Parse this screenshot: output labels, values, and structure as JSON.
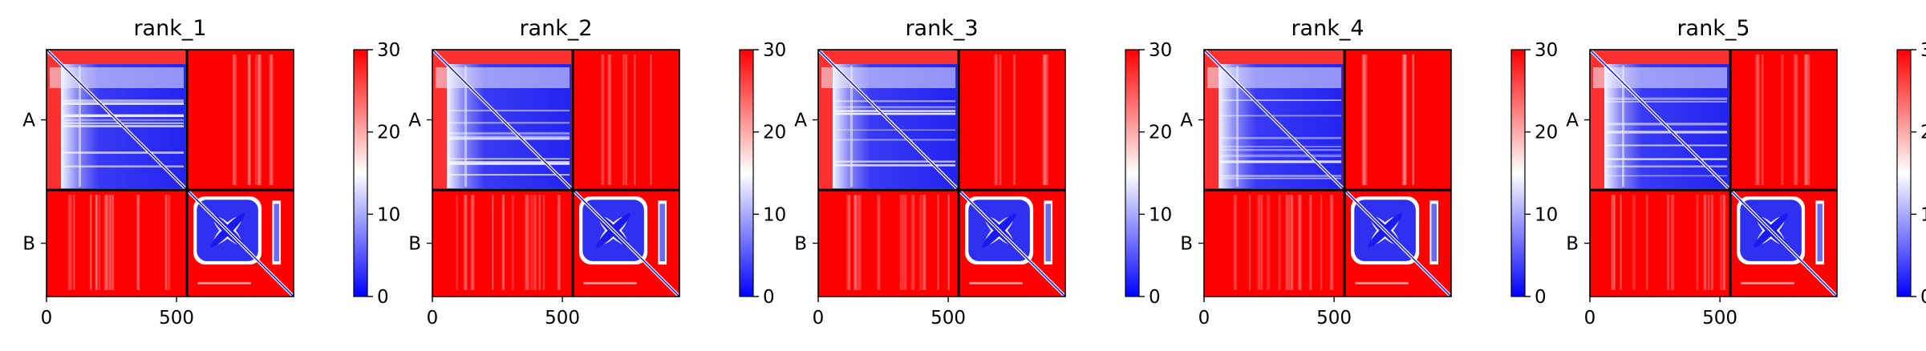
{
  "chart_data": {
    "type": "heatmap",
    "colormap": [
      "#0000ff",
      "#ffffff",
      "#ff0000"
    ],
    "colorbar": {
      "range": [
        0,
        30
      ],
      "ticks": [
        "0",
        "10",
        "20",
        "30"
      ]
    },
    "chain_labels": [
      "A",
      "B"
    ],
    "chain_boundary": 540,
    "matrix_size": 950,
    "x_ticks": [
      "0",
      "500"
    ],
    "panels": [
      {
        "title": "rank_1"
      },
      {
        "title": "rank_2"
      },
      {
        "title": "rank_3"
      },
      {
        "title": "rank_4"
      },
      {
        "title": "rank_5"
      }
    ]
  }
}
